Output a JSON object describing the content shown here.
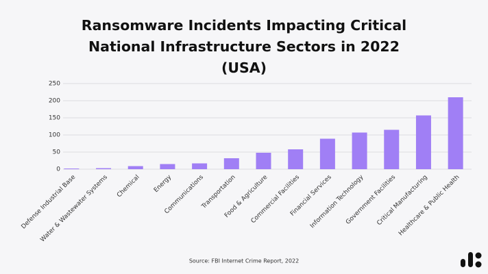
{
  "chart_data": {
    "type": "bar",
    "title": "Ransomware Incidents Impacting Critical National Infrastructure Sectors in 2022 (USA)",
    "categories": [
      "Defense Industrial Base",
      "Water & Wastewater Systems",
      "Chemical",
      "Energy",
      "Communications",
      "Transportation",
      "Food & Agriculture",
      "Commercial Facilities",
      "Financial Services",
      "Information Technology",
      "Government Facilities",
      "Critical Manufacturing",
      "Healthcare & Public Health"
    ],
    "values": [
      2,
      3,
      9,
      15,
      17,
      32,
      48,
      58,
      89,
      107,
      115,
      157,
      210
    ],
    "color": "#a07ff5",
    "ylim": [
      0,
      250
    ],
    "yticks": [
      0,
      50,
      100,
      150,
      200,
      250
    ],
    "grid": true,
    "source": "Source: FBI Internet Crime Report, 2022"
  }
}
